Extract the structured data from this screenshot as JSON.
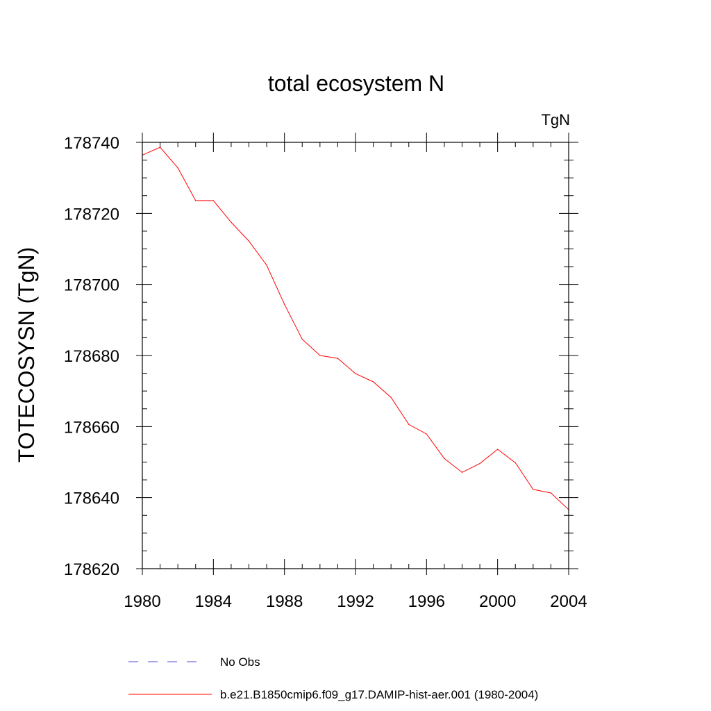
{
  "chart_data": {
    "type": "line",
    "title": "total ecosystem N",
    "units": "TgN",
    "xlabel": "",
    "ylabel": "TOTECOSYSN  (TgN)",
    "xlim": [
      1980,
      2004
    ],
    "ylim": [
      178620,
      178740
    ],
    "xticks": [
      1980,
      1984,
      1988,
      1992,
      1996,
      2000,
      2004
    ],
    "yticks": [
      178620,
      178640,
      178660,
      178680,
      178700,
      178720,
      178740
    ],
    "grid": false,
    "series": [
      {
        "name": "b.e21.B1850cmip6.f09_g17.DAMIP-hist-aer.001 (1980-2004)",
        "color": "#ff0000",
        "style": "solid",
        "x": [
          1980,
          1981,
          1982,
          1983,
          1984,
          1985,
          1986,
          1987,
          1988,
          1989,
          1990,
          1991,
          1992,
          1993,
          1994,
          1995,
          1996,
          1997,
          1998,
          1999,
          2000,
          2001,
          2002,
          2003,
          2004
        ],
        "y": [
          178736.4,
          178738.6,
          178732.8,
          178723.6,
          178723.6,
          178717.5,
          178712.2,
          178705.4,
          178694.4,
          178684.6,
          178680.0,
          178679.2,
          178674.9,
          178672.6,
          178668.2,
          178660.6,
          178657.9,
          178651.0,
          178647.1,
          178649.6,
          178653.6,
          178649.8,
          178642.3,
          178641.3,
          178636.6
        ]
      }
    ],
    "legend": {
      "position": "bottom",
      "entries": [
        {
          "label": "No Obs",
          "color": "#4b4bd2",
          "style": "dashed"
        },
        {
          "label": "b.e21.B1850cmip6.f09_g17.DAMIP-hist-aer.001 (1980-2004)",
          "color": "#ff0000",
          "style": "solid"
        }
      ]
    }
  }
}
